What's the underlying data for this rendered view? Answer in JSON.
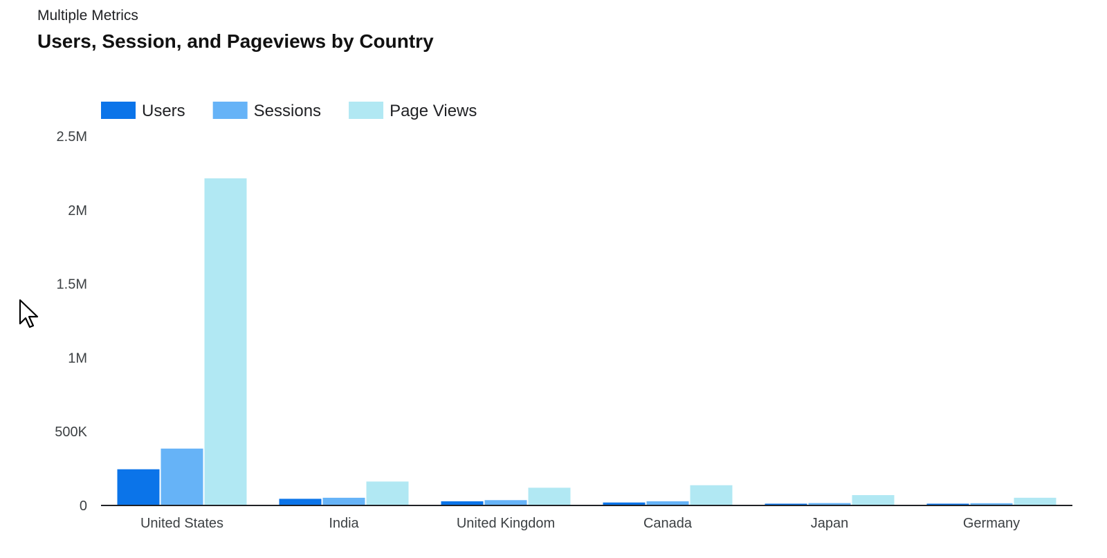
{
  "header": {
    "subtitle": "Multiple Metrics",
    "title": "Users, Session, and Pageviews by Country"
  },
  "cursor": {
    "icon": "mouse-pointer-icon"
  },
  "chart_data": {
    "type": "bar",
    "title": "Users, Session, and Pageviews by Country",
    "subtitle": "Multiple Metrics",
    "xlabel": "",
    "ylabel": "",
    "categories": [
      "United States",
      "India",
      "United Kingdom",
      "Canada",
      "Japan",
      "Germany"
    ],
    "series": [
      {
        "name": "Users",
        "color": "#0b74e9",
        "values": [
          245000,
          45000,
          28000,
          20000,
          12000,
          12000
        ]
      },
      {
        "name": "Sessions",
        "color": "#66b3f7",
        "values": [
          385000,
          52000,
          36000,
          28000,
          16000,
          15000
        ]
      },
      {
        "name": "Page Views",
        "color": "#b1e8f3",
        "values": [
          2215000,
          162000,
          120000,
          137000,
          70000,
          52000
        ]
      }
    ],
    "ylim": [
      0,
      2500000
    ],
    "yticks": [
      0,
      500000,
      1000000,
      1500000,
      2000000,
      2500000
    ],
    "ytick_labels": [
      "0",
      "500K",
      "1M",
      "1.5M",
      "2M",
      "2.5M"
    ],
    "grid": false,
    "legend": "top-left"
  }
}
